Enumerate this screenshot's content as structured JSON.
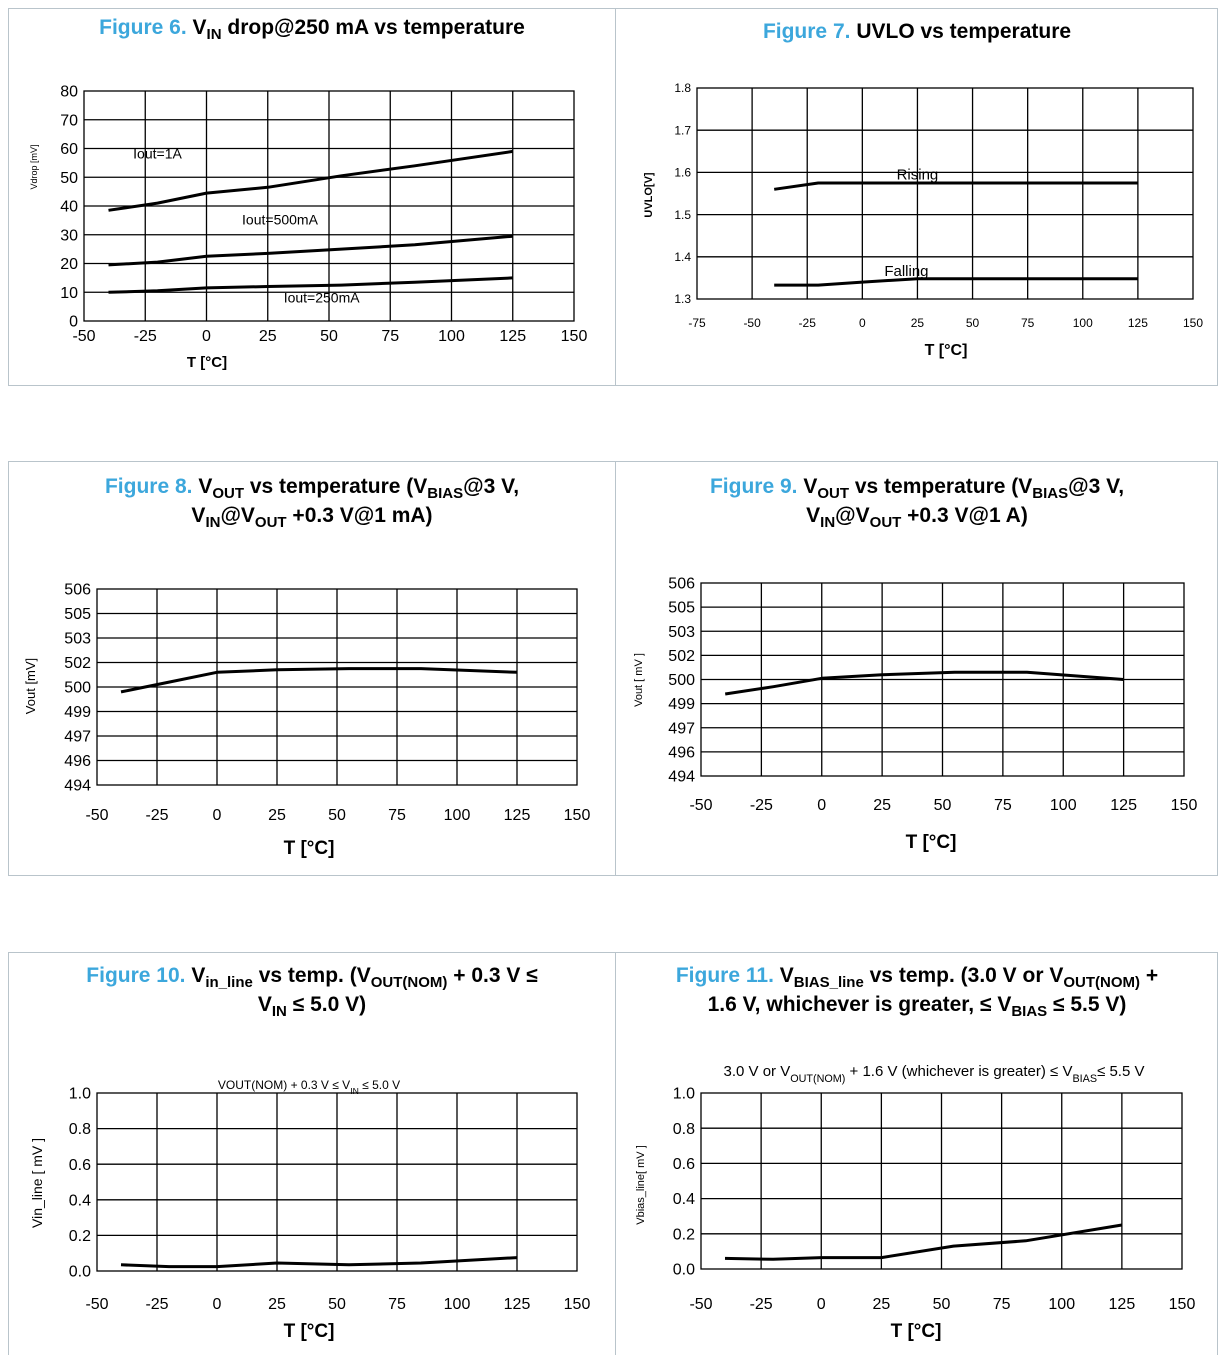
{
  "figures": [
    {
      "num": "Figure 6.",
      "title_html": "V<sub>IN</sub> drop@250 mA vs temperature"
    },
    {
      "num": "Figure 7.",
      "title_html": "UVLO vs temperature"
    },
    {
      "num": "Figure 8.",
      "title_html": "V<sub>OUT</sub> vs temperature (V<sub>BIAS</sub>@3 V,<br>V<sub>IN</sub>@V<sub>OUT</sub> +0.3 V@1 mA)"
    },
    {
      "num": "Figure 9.",
      "title_html": "V<sub>OUT</sub> vs temperature (V<sub>BIAS</sub>@3 V,<br>V<sub>IN</sub>@V<sub>OUT</sub> +0.3 V@1 A)"
    },
    {
      "num": "Figure 10.",
      "title_html": "V<sub>in_line</sub> vs temp. (V<sub>OUT(NOM)</sub> + 0.3 V ≤<br>V<sub>IN</sub> ≤ 5.0 V)"
    },
    {
      "num": "Figure 11.",
      "title_html": "V<sub>BIAS_line</sub> vs temp. (3.0 V or V<sub>OUT(NOM)</sub> +<br>1.6 V, whichever is greater, ≤ V<sub>BIAS</sub> ≤ 5.5 V)"
    }
  ],
  "chart_data": [
    {
      "type": "line",
      "title": "",
      "xlabel": "T [°C]",
      "ylabel": "Vdrop [mV]",
      "xlim": [
        -50,
        150
      ],
      "ylim": [
        0,
        80
      ],
      "xticks": [
        "-50",
        "-25",
        "0",
        "25",
        "50",
        "75",
        "100",
        "125",
        "150"
      ],
      "yticks": [
        "0",
        "10",
        "20",
        "30",
        "40",
        "50",
        "60",
        "70",
        "80"
      ],
      "series": [
        {
          "name": "Iout=1A",
          "x": [
            -40,
            -20,
            0,
            25,
            55,
            85,
            125
          ],
          "y": [
            38.5,
            41,
            44.5,
            46.5,
            50.5,
            54,
            59
          ]
        },
        {
          "name": "Iout=500mA",
          "x": [
            -40,
            -20,
            0,
            25,
            55,
            85,
            125
          ],
          "y": [
            19.5,
            20.5,
            22.5,
            23.5,
            25,
            26.5,
            29.5
          ]
        },
        {
          "name": "Iout=250mA",
          "x": [
            -40,
            -20,
            0,
            25,
            55,
            85,
            125
          ],
          "y": [
            10,
            10.5,
            11.5,
            12,
            12.5,
            13.5,
            15
          ]
        }
      ],
      "annotations": [
        "Iout=1A",
        "Iout=500mA",
        "Iout=250mA"
      ]
    },
    {
      "type": "line",
      "title": "",
      "xlabel": "T [°C]",
      "ylabel": "UVLO[V]",
      "xlim": [
        -75,
        150
      ],
      "ylim": [
        1.3,
        1.8
      ],
      "xticks": [
        "-75",
        "-50",
        "-25",
        "0",
        "25",
        "50",
        "75",
        "100",
        "125",
        "150"
      ],
      "yticks": [
        "1.3",
        "1.4",
        "1.5",
        "1.6",
        "1.7",
        "1.8"
      ],
      "series": [
        {
          "name": "Rising",
          "x": [
            -40,
            -20,
            0,
            25,
            55,
            85,
            125
          ],
          "y": [
            1.56,
            1.575,
            1.575,
            1.575,
            1.575,
            1.575,
            1.575
          ]
        },
        {
          "name": "Falling",
          "x": [
            -40,
            -20,
            0,
            25,
            55,
            85,
            125
          ],
          "y": [
            1.333,
            1.333,
            1.34,
            1.348,
            1.348,
            1.348,
            1.348
          ]
        }
      ],
      "annotations": [
        "Rising",
        "Falling"
      ]
    },
    {
      "type": "line",
      "title": "",
      "xlabel": "T [°C]",
      "ylabel": "Vout [mV]",
      "xlim": [
        -50,
        150
      ],
      "ylim": [
        0,
        8
      ],
      "xticks": [
        "-50",
        "-25",
        "0",
        "25",
        "50",
        "75",
        "100",
        "125",
        "150"
      ],
      "yticks": [
        "494",
        "496",
        "497",
        "499",
        "500",
        "502",
        "503",
        "505",
        "506"
      ],
      "series": [
        {
          "name": "",
          "x": [
            -40,
            -20,
            0,
            25,
            55,
            85,
            125
          ],
          "y": [
            3.8,
            4.2,
            4.6,
            4.7,
            4.75,
            4.75,
            4.6
          ]
        }
      ],
      "annotations": []
    },
    {
      "type": "line",
      "title": "",
      "xlabel": "T [°C]",
      "ylabel": "Vout [ mV ]",
      "xlim": [
        -50,
        150
      ],
      "ylim": [
        0,
        8
      ],
      "xticks": [
        "-50",
        "-25",
        "0",
        "25",
        "50",
        "75",
        "100",
        "125",
        "150"
      ],
      "yticks": [
        "494",
        "496",
        "497",
        "499",
        "500",
        "502",
        "503",
        "505",
        "506"
      ],
      "series": [
        {
          "name": "",
          "x": [
            -40,
            -20,
            0,
            25,
            55,
            85,
            125
          ],
          "y": [
            3.4,
            3.7,
            4.05,
            4.2,
            4.3,
            4.3,
            4.0
          ]
        }
      ],
      "annotations": []
    },
    {
      "type": "line",
      "title": "VOUT(NOM) + 0.3 V ≤ VIN ≤ 5.0 V",
      "xlabel": "T [°C]",
      "ylabel": "Vin_line  [ mV ]",
      "xlim": [
        -50,
        150
      ],
      "ylim": [
        0,
        1
      ],
      "xticks": [
        "-50",
        "-25",
        "0",
        "25",
        "50",
        "75",
        "100",
        "125",
        "150"
      ],
      "yticks": [
        "0.0",
        "0.2",
        "0.4",
        "0.6",
        "0.8",
        "1.0"
      ],
      "series": [
        {
          "name": "",
          "x": [
            -40,
            -20,
            0,
            25,
            55,
            85,
            125
          ],
          "y": [
            0.035,
            0.025,
            0.025,
            0.045,
            0.035,
            0.045,
            0.075
          ]
        }
      ],
      "annotations": []
    },
    {
      "type": "line",
      "title": "3.0 V or VOUT(NOM) + 1.6 V (whichever is greater) ≤ VBIAS≤ 5.5 V",
      "xlabel": "T [°C]",
      "ylabel": "Vbias_line[ mV ]",
      "xlim": [
        -50,
        150
      ],
      "ylim": [
        0,
        1
      ],
      "xticks": [
        "-50",
        "-25",
        "0",
        "25",
        "50",
        "75",
        "100",
        "125",
        "150"
      ],
      "yticks": [
        "0.0",
        "0.2",
        "0.4",
        "0.6",
        "0.8",
        "1.0"
      ],
      "series": [
        {
          "name": "",
          "x": [
            -40,
            -20,
            0,
            25,
            55,
            85,
            125
          ],
          "y": [
            0.06,
            0.055,
            0.065,
            0.065,
            0.13,
            0.16,
            0.25
          ]
        }
      ],
      "annotations": []
    }
  ]
}
